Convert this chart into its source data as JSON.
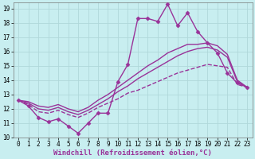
{
  "bg_color": "#c8eef0",
  "grid_color": "#b0d8da",
  "line_color": "#993399",
  "marker": "D",
  "markersize": 2.5,
  "linewidth": 1.0,
  "xlabel": "Windchill (Refroidissement éolien,°C)",
  "xlabel_fontsize": 6.5,
  "tick_fontsize": 5.5,
  "xlim": [
    -0.5,
    23.5
  ],
  "ylim": [
    10,
    19.4
  ],
  "yticks": [
    10,
    11,
    12,
    13,
    14,
    15,
    16,
    17,
    18,
    19
  ],
  "xticks": [
    0,
    1,
    2,
    3,
    4,
    5,
    6,
    7,
    8,
    9,
    10,
    11,
    12,
    13,
    14,
    15,
    16,
    17,
    18,
    19,
    20,
    21,
    22,
    23
  ],
  "line1": [
    12.6,
    12.2,
    11.4,
    11.1,
    11.3,
    10.8,
    10.3,
    11.0,
    11.7,
    11.7,
    13.9,
    15.1,
    18.3,
    18.3,
    18.1,
    19.3,
    17.8,
    18.7,
    17.4,
    16.6,
    15.9,
    14.5,
    13.8,
    13.5
  ],
  "line2": [
    12.6,
    12.5,
    12.2,
    12.1,
    12.3,
    12.0,
    11.8,
    12.1,
    12.6,
    13.0,
    13.5,
    14.0,
    14.5,
    15.0,
    15.4,
    15.9,
    16.2,
    16.5,
    16.5,
    16.6,
    16.4,
    15.8,
    14.0,
    13.5
  ],
  "line3": [
    12.6,
    12.4,
    12.0,
    11.9,
    12.1,
    11.8,
    11.6,
    11.9,
    12.3,
    12.7,
    13.2,
    13.6,
    14.1,
    14.5,
    14.9,
    15.3,
    15.7,
    16.0,
    16.2,
    16.3,
    16.1,
    15.6,
    13.9,
    13.5
  ],
  "line4": [
    12.6,
    12.3,
    11.8,
    11.7,
    11.9,
    11.6,
    11.4,
    11.7,
    12.1,
    12.4,
    12.7,
    13.1,
    13.3,
    13.6,
    13.9,
    14.2,
    14.5,
    14.7,
    14.9,
    15.1,
    15.0,
    14.9,
    13.7,
    13.5
  ]
}
